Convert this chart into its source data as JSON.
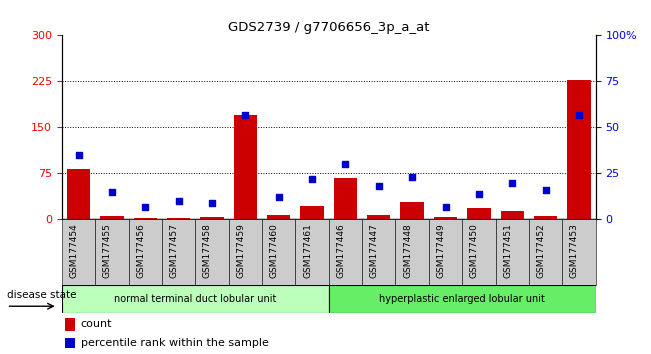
{
  "title": "GDS2739 / g7706656_3p_a_at",
  "samples": [
    "GSM177454",
    "GSM177455",
    "GSM177456",
    "GSM177457",
    "GSM177458",
    "GSM177459",
    "GSM177460",
    "GSM177461",
    "GSM177446",
    "GSM177447",
    "GSM177448",
    "GSM177449",
    "GSM177450",
    "GSM177451",
    "GSM177452",
    "GSM177453"
  ],
  "counts": [
    82,
    5,
    3,
    3,
    4,
    170,
    8,
    22,
    67,
    7,
    28,
    4,
    18,
    14,
    5,
    228
  ],
  "percentiles": [
    35,
    15,
    7,
    10,
    9,
    57,
    12,
    22,
    30,
    18,
    23,
    7,
    14,
    20,
    16,
    57
  ],
  "group1_label": "normal terminal duct lobular unit",
  "group1_count": 8,
  "group2_label": "hyperplastic enlarged lobular unit",
  "group2_count": 8,
  "disease_state_label": "disease state",
  "legend_count": "count",
  "legend_percentile": "percentile rank within the sample",
  "bar_color": "#cc0000",
  "dot_color": "#0000cc",
  "group1_color": "#bbffbb",
  "group2_color": "#66ee66",
  "background_color": "#ffffff",
  "tick_bg_color": "#cccccc",
  "ylim_left": [
    0,
    300
  ],
  "ylim_right": [
    0,
    100
  ],
  "yticks_left": [
    0,
    75,
    150,
    225,
    300
  ],
  "yticks_right": [
    0,
    25,
    50,
    75,
    100
  ],
  "grid_lines": [
    75,
    150,
    225
  ],
  "figsize": [
    6.51,
    3.54
  ],
  "dpi": 100
}
